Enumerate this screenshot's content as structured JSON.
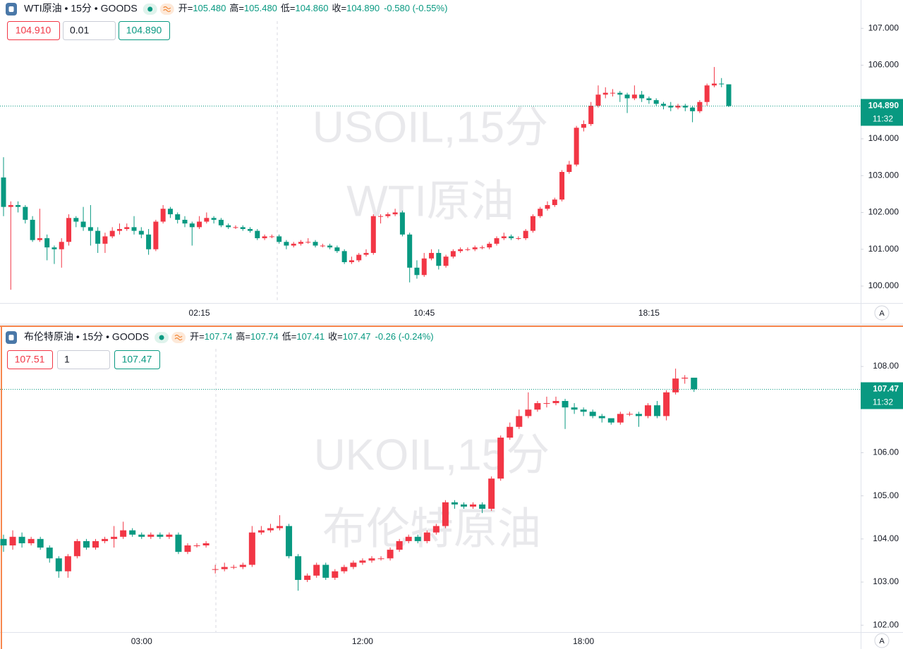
{
  "chart_data": [
    {
      "type": "candlestick",
      "title": "WTI原油 • 15分 • GOODS",
      "ohlc_header": [
        {
          "label": "开=",
          "value": "105.480"
        },
        {
          "label": "高=",
          "value": "105.480"
        },
        {
          "label": "低=",
          "value": "104.860"
        },
        {
          "label": "收=",
          "value": "104.890"
        }
      ],
      "change_text": "-0.580 (-0.55%)",
      "order_buttons": [
        "104.910",
        "0.01",
        "104.890"
      ],
      "watermark": [
        "USOIL,15分",
        "WTI原油"
      ],
      "up_color": "#f23645",
      "down_color": "#089981",
      "current_price": {
        "value": 104.89,
        "label": "104.890"
      },
      "countdown": "11:32",
      "scale_button": "A",
      "ylim": [
        99.54,
        107.77
      ],
      "yticks": [
        {
          "value": 107,
          "label": "107.000"
        },
        {
          "value": 106,
          "label": "106.000"
        },
        {
          "value": 104,
          "label": "104.000"
        },
        {
          "value": 103,
          "label": "103.000"
        },
        {
          "value": 102,
          "label": "102.000"
        },
        {
          "value": 101,
          "label": "101.000"
        },
        {
          "value": 100,
          "label": "100.000"
        }
      ],
      "categories": [
        null,
        null,
        null,
        null,
        null,
        null,
        null,
        null,
        null,
        null,
        null,
        null,
        null,
        null,
        null,
        null,
        null,
        null,
        null,
        null,
        null,
        null,
        null,
        null,
        null,
        null,
        null,
        "02:15",
        null,
        null,
        null,
        null,
        null,
        null,
        null,
        null,
        null,
        null,
        null,
        null,
        null,
        null,
        null,
        null,
        null,
        null,
        null,
        null,
        null,
        null,
        null,
        null,
        null,
        null,
        null,
        null,
        null,
        null,
        "10:45",
        null,
        null,
        null,
        null,
        null,
        null,
        null,
        null,
        null,
        null,
        null,
        null,
        null,
        null,
        null,
        null,
        null,
        null,
        null,
        null,
        null,
        null,
        null,
        null,
        null,
        null,
        null,
        null,
        null,
        null,
        "18:15",
        null,
        null,
        null,
        null,
        null,
        null,
        null,
        null,
        null,
        null,
        null
      ],
      "open": [
        102.95,
        102.15,
        102.2,
        102.15,
        101.8,
        101.25,
        101.3,
        101.05,
        101.0,
        101.2,
        101.85,
        101.75,
        101.6,
        101.5,
        101.15,
        101.35,
        101.5,
        101.55,
        101.6,
        101.5,
        101.4,
        101.0,
        101.75,
        102.1,
        101.95,
        101.8,
        101.7,
        101.6,
        101.75,
        101.85,
        101.8,
        101.65,
        101.6,
        101.6,
        101.55,
        101.5,
        101.3,
        101.35,
        101.35,
        101.2,
        101.1,
        101.15,
        101.2,
        101.2,
        101.1,
        101.1,
        101.05,
        100.95,
        100.65,
        100.7,
        100.85,
        100.9,
        101.9,
        101.9,
        101.95,
        102.0,
        101.4,
        100.5,
        100.3,
        100.75,
        100.9,
        100.55,
        100.8,
        100.95,
        101.0,
        101.0,
        101.05,
        101.05,
        101.15,
        101.3,
        101.35,
        101.3,
        101.3,
        101.5,
        101.9,
        102.1,
        102.2,
        102.35,
        103.1,
        103.3,
        104.3,
        104.4,
        104.9,
        105.2,
        105.25,
        105.25,
        105.2,
        105.1,
        105.2,
        105.1,
        105.05,
        104.95,
        104.9,
        104.85,
        104.9,
        104.85,
        104.75,
        105.0,
        105.45,
        105.5,
        105.48
      ],
      "high": [
        103.5,
        102.3,
        102.3,
        102.2,
        101.9,
        102.1,
        101.4,
        101.1,
        101.3,
        101.95,
        101.9,
        102.15,
        102.2,
        101.6,
        101.45,
        101.6,
        101.7,
        101.7,
        101.9,
        101.6,
        101.55,
        101.8,
        102.2,
        102.15,
        102.0,
        101.9,
        101.75,
        101.9,
        102.0,
        101.9,
        101.85,
        101.7,
        101.65,
        101.65,
        101.6,
        101.55,
        101.4,
        101.4,
        101.4,
        101.25,
        101.2,
        101.25,
        101.3,
        101.25,
        101.15,
        101.15,
        101.1,
        101.0,
        100.8,
        100.9,
        101.0,
        101.95,
        101.95,
        102.0,
        102.1,
        102.05,
        101.45,
        100.7,
        100.9,
        101.0,
        101.0,
        100.85,
        101.0,
        101.05,
        101.05,
        101.1,
        101.1,
        101.2,
        101.35,
        101.45,
        101.4,
        101.35,
        101.55,
        101.95,
        102.15,
        102.3,
        102.4,
        103.15,
        103.4,
        104.35,
        104.5,
        105.0,
        105.45,
        105.4,
        105.35,
        105.3,
        105.25,
        105.45,
        105.3,
        105.15,
        105.1,
        105.0,
        105.0,
        104.95,
        104.95,
        104.9,
        105.05,
        105.5,
        105.95,
        105.65,
        105.48
      ],
      "low": [
        101.9,
        99.9,
        102.0,
        101.7,
        101.2,
        101.2,
        100.7,
        100.6,
        100.5,
        101.1,
        101.6,
        101.5,
        101.1,
        100.9,
        100.9,
        101.3,
        101.4,
        101.5,
        101.4,
        101.3,
        100.85,
        100.95,
        101.7,
        101.85,
        101.7,
        101.6,
        101.1,
        101.55,
        101.7,
        101.7,
        101.6,
        101.55,
        101.55,
        101.5,
        101.45,
        101.25,
        101.25,
        101.3,
        101.15,
        101.0,
        101.05,
        101.1,
        101.15,
        101.05,
        101.05,
        101.0,
        100.9,
        100.6,
        100.6,
        100.65,
        100.8,
        100.85,
        101.7,
        101.85,
        101.9,
        101.35,
        100.1,
        100.2,
        100.25,
        100.7,
        100.45,
        100.5,
        100.75,
        100.9,
        100.95,
        100.95,
        101.0,
        101.0,
        101.1,
        101.25,
        101.25,
        101.25,
        101.25,
        101.45,
        101.85,
        102.05,
        102.15,
        102.3,
        103.05,
        103.25,
        104.2,
        104.35,
        104.85,
        105.1,
        105.15,
        105.0,
        104.7,
        105.05,
        105.0,
        104.95,
        104.9,
        104.8,
        104.75,
        104.8,
        104.75,
        104.45,
        104.7,
        104.9,
        105.4,
        105.4,
        104.86
      ],
      "close": [
        102.15,
        102.2,
        102.15,
        101.8,
        101.25,
        101.3,
        101.05,
        101.0,
        101.2,
        101.85,
        101.75,
        101.6,
        101.5,
        101.15,
        101.35,
        101.5,
        101.55,
        101.6,
        101.5,
        101.4,
        101.0,
        101.75,
        102.1,
        101.95,
        101.8,
        101.7,
        101.6,
        101.75,
        101.85,
        101.8,
        101.65,
        101.6,
        101.6,
        101.55,
        101.5,
        101.3,
        101.35,
        101.35,
        101.2,
        101.1,
        101.15,
        101.2,
        101.2,
        101.1,
        101.1,
        101.05,
        100.95,
        100.65,
        100.7,
        100.85,
        100.9,
        101.9,
        101.9,
        101.95,
        102.0,
        101.4,
        100.5,
        100.3,
        100.75,
        100.9,
        100.55,
        100.8,
        100.95,
        101.0,
        101.0,
        101.05,
        101.05,
        101.15,
        101.3,
        101.35,
        101.3,
        101.3,
        101.5,
        101.9,
        102.1,
        102.2,
        102.35,
        103.1,
        103.3,
        104.3,
        104.4,
        104.9,
        105.2,
        105.25,
        105.25,
        105.2,
        105.1,
        105.2,
        105.1,
        105.05,
        104.95,
        104.9,
        104.85,
        104.9,
        104.85,
        104.75,
        105.0,
        105.45,
        105.5,
        105.48,
        104.89
      ]
    },
    {
      "type": "candlestick",
      "title": "布伦特原油 • 15分 • GOODS",
      "ohlc_header": [
        {
          "label": "开=",
          "value": "107.74"
        },
        {
          "label": "高=",
          "value": "107.74"
        },
        {
          "label": "低=",
          "value": "107.41"
        },
        {
          "label": "收=",
          "value": "107.47"
        }
      ],
      "change_text": "-0.26 (-0.24%)",
      "order_buttons": [
        "107.51",
        "1",
        "107.47"
      ],
      "watermark": [
        "UKOIL,15分",
        "布伦特原油"
      ],
      "up_color": "#f23645",
      "down_color": "#089981",
      "current_price": {
        "value": 107.47,
        "label": "107.47"
      },
      "countdown": "11:32",
      "scale_button": "A",
      "ylim": [
        101.84,
        108.9
      ],
      "yticks": [
        {
          "value": 108,
          "label": "108.00"
        },
        {
          "value": 106,
          "label": "106.00"
        },
        {
          "value": 105,
          "label": "105.00"
        },
        {
          "value": 104,
          "label": "104.00"
        },
        {
          "value": 103,
          "label": "103.00"
        },
        {
          "value": 102,
          "label": "102.00"
        }
      ],
      "categories": [
        null,
        null,
        null,
        null,
        null,
        null,
        null,
        null,
        null,
        null,
        null,
        null,
        null,
        null,
        null,
        "03:00",
        null,
        null,
        null,
        null,
        null,
        null,
        null,
        null,
        null,
        null,
        null,
        null,
        null,
        null,
        null,
        null,
        null,
        null,
        null,
        null,
        null,
        null,
        null,
        "12:00",
        null,
        null,
        null,
        null,
        null,
        null,
        null,
        null,
        null,
        null,
        null,
        null,
        null,
        null,
        null,
        null,
        null,
        null,
        null,
        null,
        null,
        null,
        null,
        "18:00",
        null,
        null,
        null,
        null,
        null,
        null,
        null,
        null,
        null,
        null,
        null,
        null
      ],
      "open": [
        104.0,
        103.85,
        104.05,
        103.9,
        104.0,
        103.8,
        103.55,
        103.25,
        103.6,
        103.95,
        103.8,
        103.95,
        104.0,
        104.05,
        104.2,
        104.1,
        104.05,
        104.1,
        104.05,
        104.1,
        103.7,
        103.85,
        103.85,
        103.3,
        103.3,
        103.35,
        103.35,
        103.4,
        104.15,
        104.2,
        104.25,
        104.3,
        103.6,
        103.05,
        103.15,
        103.4,
        103.1,
        103.25,
        103.35,
        103.45,
        103.5,
        103.55,
        103.55,
        103.75,
        103.95,
        104.05,
        103.95,
        104.15,
        104.3,
        104.85,
        104.8,
        104.75,
        104.8,
        104.7,
        105.4,
        106.35,
        106.6,
        106.85,
        107.0,
        107.15,
        107.15,
        107.2,
        107.05,
        107.0,
        106.95,
        106.85,
        106.8,
        106.7,
        106.9,
        106.9,
        106.85,
        107.1,
        106.85,
        107.4,
        107.72,
        107.74
      ],
      "high": [
        104.1,
        104.2,
        104.15,
        104.05,
        104.05,
        103.85,
        103.6,
        103.65,
        104.0,
        104.0,
        104.0,
        104.05,
        104.3,
        104.4,
        104.25,
        104.15,
        104.15,
        104.15,
        104.15,
        104.15,
        103.9,
        103.9,
        103.95,
        103.4,
        103.45,
        103.4,
        103.45,
        104.3,
        104.3,
        104.35,
        104.55,
        104.35,
        103.65,
        103.2,
        103.45,
        103.45,
        103.3,
        103.4,
        103.5,
        103.55,
        103.6,
        103.6,
        103.8,
        104.0,
        104.1,
        104.1,
        104.2,
        104.35,
        104.9,
        104.9,
        104.85,
        104.85,
        104.85,
        105.45,
        106.4,
        106.7,
        107.0,
        107.4,
        107.2,
        107.3,
        107.3,
        107.25,
        107.15,
        107.05,
        107.0,
        106.9,
        106.8,
        106.95,
        106.95,
        106.95,
        107.15,
        107.2,
        107.45,
        107.95,
        107.8,
        107.74
      ],
      "low": [
        103.7,
        103.75,
        103.8,
        103.85,
        103.75,
        103.45,
        103.1,
        103.1,
        103.55,
        103.75,
        103.75,
        103.9,
        103.8,
        104.0,
        104.05,
        104.0,
        104.0,
        104.0,
        104.0,
        103.65,
        103.65,
        103.8,
        103.8,
        103.2,
        103.25,
        103.3,
        103.3,
        103.35,
        104.1,
        104.15,
        104.2,
        103.55,
        102.8,
        103.0,
        103.1,
        103.05,
        103.05,
        103.2,
        103.3,
        103.4,
        103.45,
        103.5,
        103.5,
        103.7,
        103.9,
        103.9,
        103.9,
        104.1,
        104.25,
        104.7,
        104.7,
        104.7,
        104.6,
        104.65,
        105.35,
        106.3,
        106.55,
        106.8,
        106.95,
        107.05,
        107.1,
        106.55,
        106.9,
        106.85,
        106.8,
        106.7,
        106.65,
        106.65,
        106.85,
        106.6,
        106.8,
        106.8,
        106.75,
        107.35,
        107.6,
        107.41
      ],
      "close": [
        103.85,
        104.05,
        103.9,
        104.0,
        103.8,
        103.55,
        103.25,
        103.6,
        103.95,
        103.8,
        103.95,
        104.0,
        104.05,
        104.2,
        104.1,
        104.05,
        104.1,
        104.05,
        104.1,
        103.7,
        103.85,
        103.85,
        103.9,
        103.3,
        103.35,
        103.35,
        103.4,
        104.15,
        104.2,
        104.25,
        104.3,
        103.6,
        103.05,
        103.15,
        103.4,
        103.1,
        103.25,
        103.35,
        103.45,
        103.5,
        103.55,
        103.55,
        103.75,
        103.95,
        104.05,
        103.95,
        104.15,
        104.3,
        104.85,
        104.8,
        104.75,
        104.8,
        104.7,
        105.4,
        106.35,
        106.6,
        106.85,
        107.0,
        107.15,
        107.15,
        107.2,
        107.05,
        107.0,
        106.95,
        106.85,
        106.8,
        106.7,
        106.9,
        106.9,
        106.85,
        107.1,
        106.85,
        107.4,
        107.72,
        107.74,
        107.47
      ]
    }
  ]
}
